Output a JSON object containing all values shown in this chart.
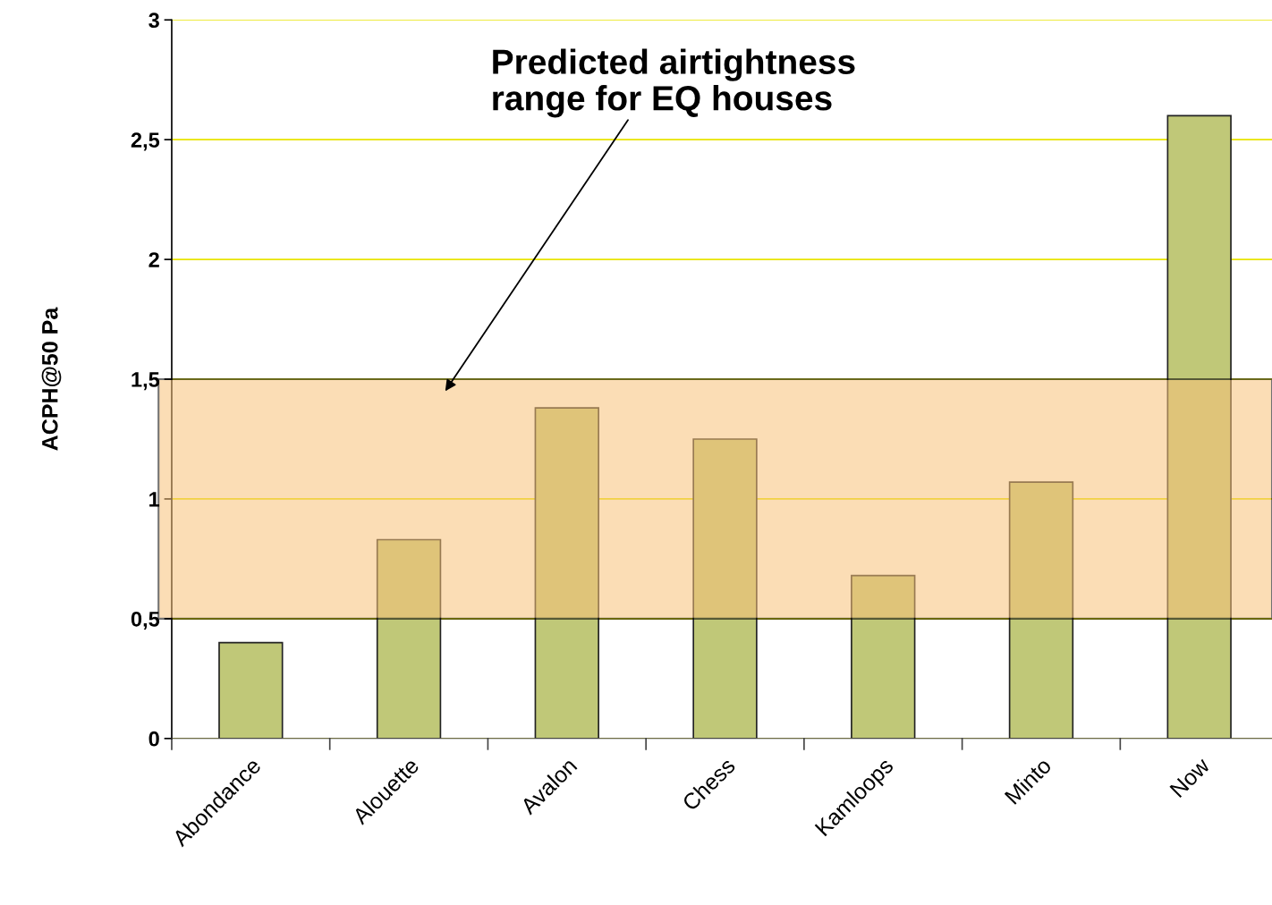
{
  "chart_data": {
    "type": "bar",
    "ylabel": "ACPH@50 Pa",
    "categories": [
      "Abondance",
      "Alouette",
      "Avalon",
      "Chess",
      "Kamloops",
      "Minto",
      "Now"
    ],
    "values": [
      0.4,
      0.83,
      1.38,
      1.25,
      0.68,
      1.07,
      2.6
    ],
    "color": "#c0c878",
    "ylim": [
      0,
      3
    ],
    "yticks": [
      0,
      {
        "value": 0.5,
        "label": "0,5"
      },
      1,
      {
        "value": 1.5,
        "label": "1,5"
      },
      2,
      {
        "value": 2.5,
        "label": "2,5"
      },
      3
    ],
    "grid": "y",
    "bands": [
      {
        "axis": "y",
        "from": 0.5,
        "to": 1.5,
        "label": "Predicted airtightness\nrange for EQ houses",
        "color": "#f9c27a"
      }
    ]
  }
}
